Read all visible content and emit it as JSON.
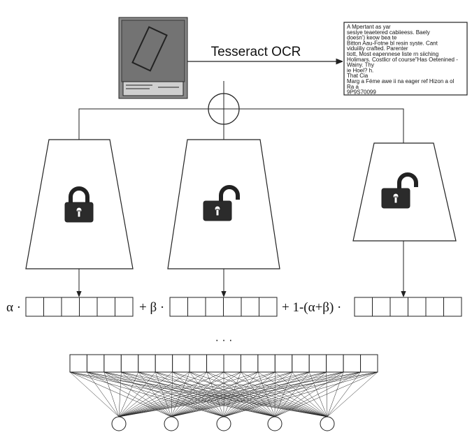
{
  "ocr_label": "Tesseract OCR",
  "ocr_output": {
    "lines": [
      "A Mpertant as yar",
      "sesiye teaetered cabiieess. Baely",
      "doesn') keow bea te",
      "Bitton Aau-Fotne bl resin syste. Cant",
      "viduiiliy crafted. Parenter",
      "tiott, Most eapennese liste rn siiching",
      "Holimars. Costlicr of course\"Has Oetenined -",
      "Wainy. Thy",
      "ie Hoel? h.",
      "That Cia",
      "Marg a Féme awe ii na eager ref Hizon a ol",
      "Ra a",
      "9P9S70099"
    ]
  },
  "equation": {
    "alpha_term": "α ·",
    "beta_term": "+ β ·",
    "rest_term": "+ 1-(α+β) ·"
  },
  "ellipsis": "· · ·"
}
